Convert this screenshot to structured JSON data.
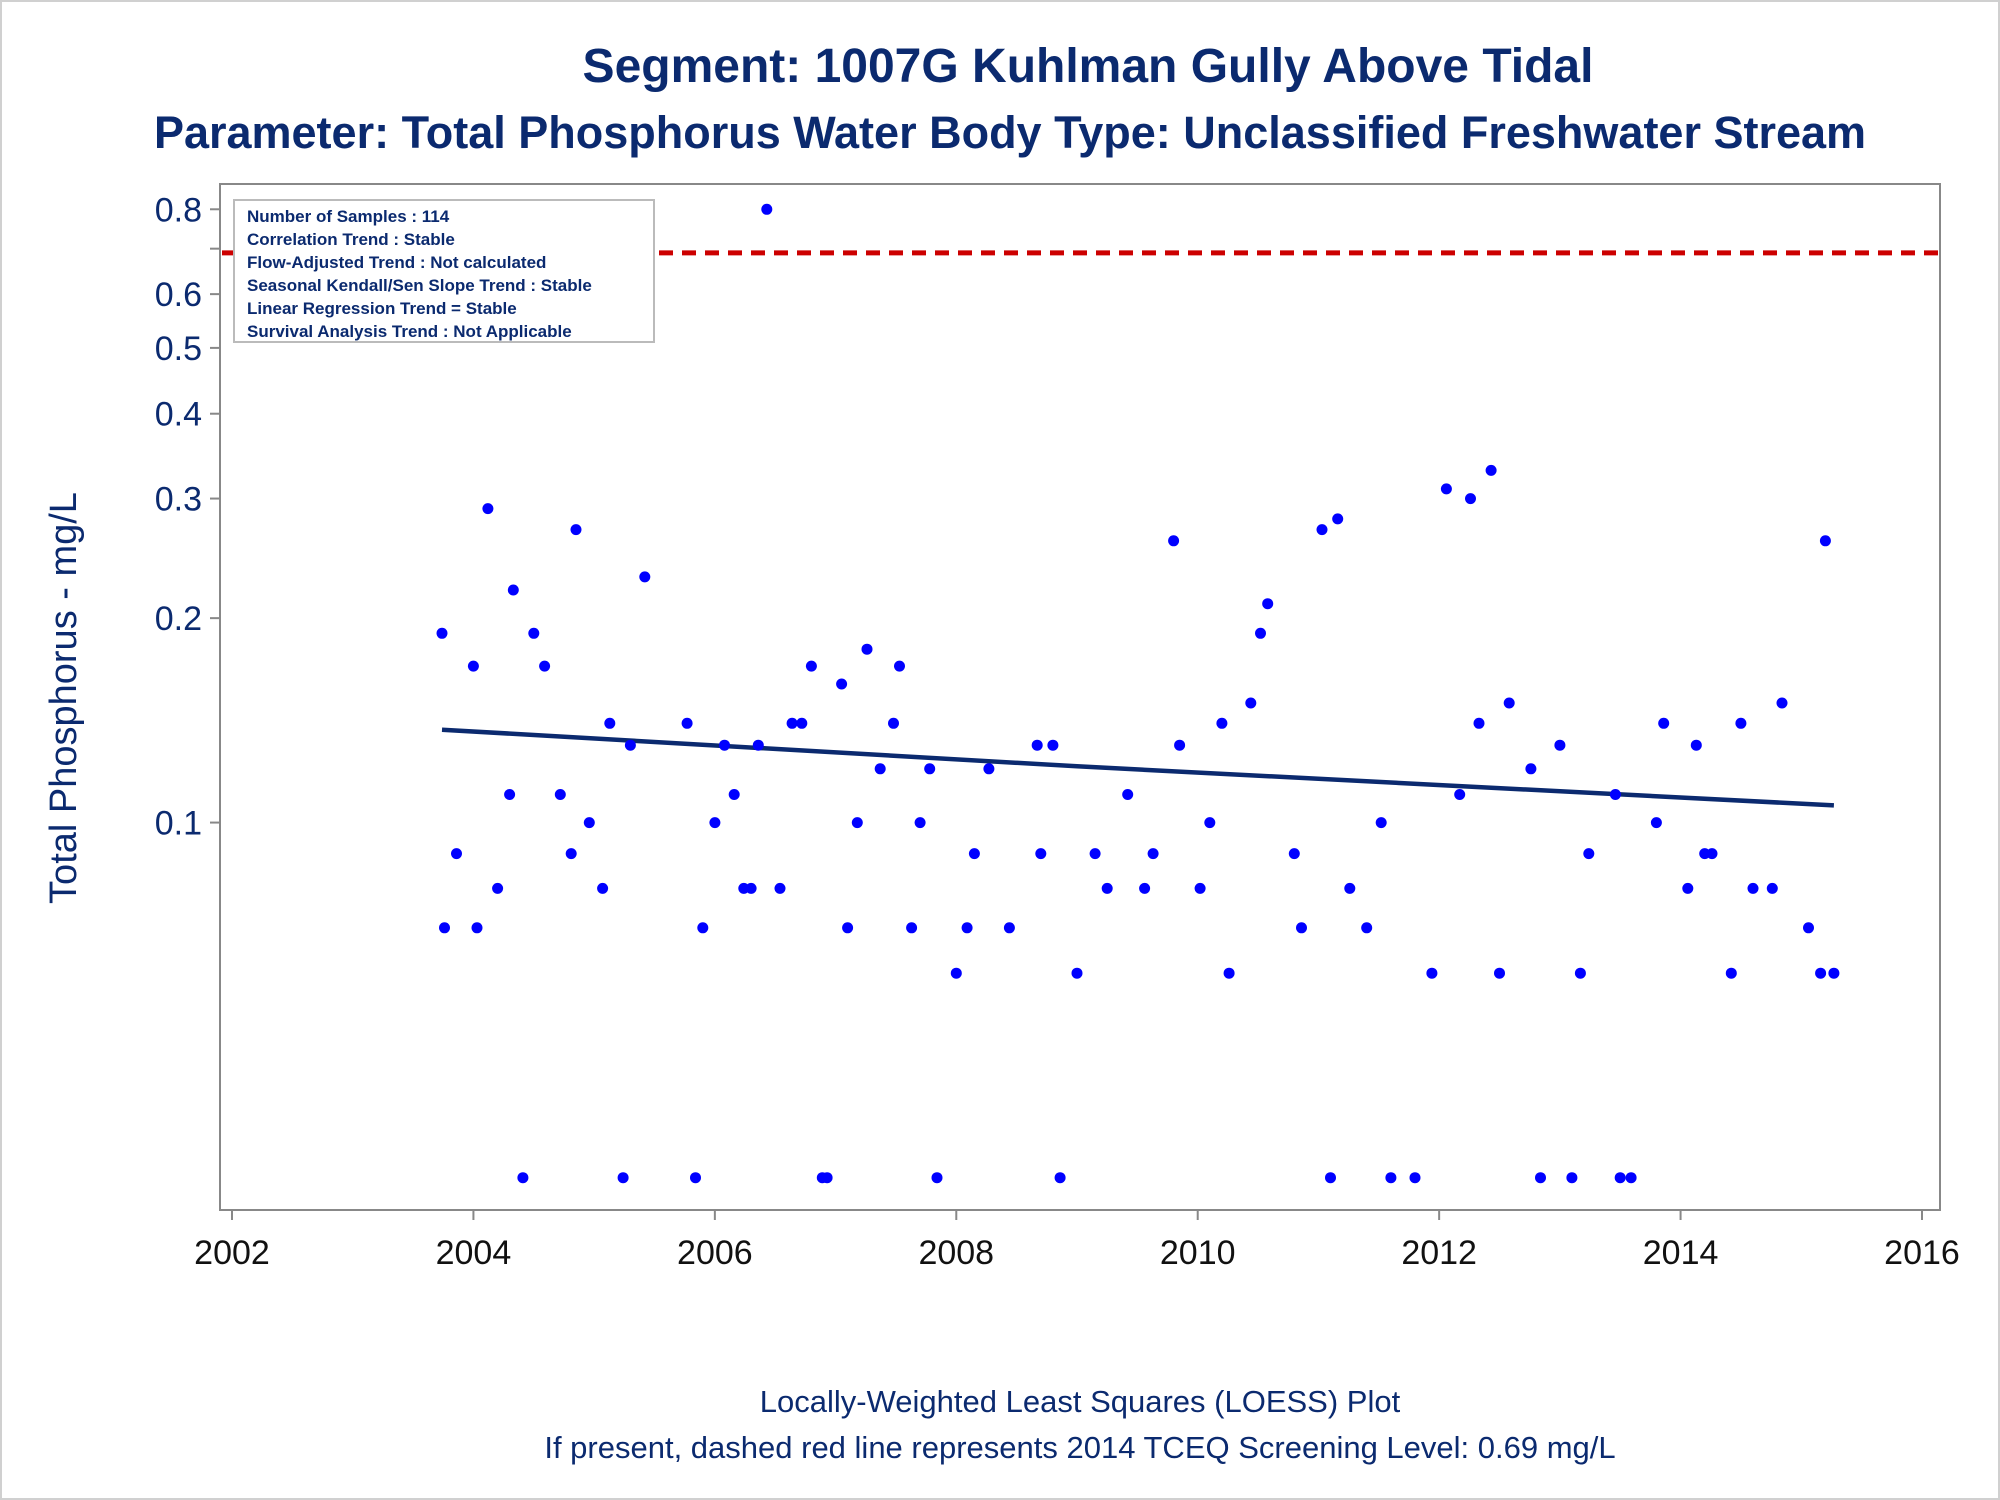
{
  "chart_data": {
    "type": "scatter",
    "title": "Segment: 1007G  Kuhlman Gully Above Tidal",
    "subtitle": "Parameter: Total Phosphorus   Water Body Type: Unclassified Freshwater Stream",
    "xlabel": "",
    "ylabel": "Total Phosphorus - mg/L",
    "y_scale": "log",
    "xlim": [
      2002,
      2016
    ],
    "ylim": [
      0.028,
      0.82
    ],
    "x_ticks": [
      "2002",
      "2004",
      "2006",
      "2008",
      "2010",
      "2012",
      "2014",
      "2016"
    ],
    "y_ticks": [
      "0.1",
      "0.2",
      "0.3",
      "0.4",
      "0.5",
      "0.6",
      "0.8"
    ],
    "grid": false,
    "info_box": [
      "Number of Samples : 114",
      "Correlation Trend : Stable",
      "Flow-Adjusted Trend : Not calculated",
      "Seasonal Kendall/Sen Slope Trend : Stable",
      "Linear Regression Trend = Stable",
      "Survival Analysis Trend : Not Applicable"
    ],
    "screening_level": 0.69,
    "footnote_1": "Locally-Weighted Least Squares (LOESS) Plot",
    "footnote_2": "If present, dashed red line represents 2014 TCEQ Screening Level: 0.69 mg/L",
    "points": [
      [
        2003.74,
        0.19
      ],
      [
        2003.76,
        0.07
      ],
      [
        2003.86,
        0.09
      ],
      [
        2004.0,
        0.17
      ],
      [
        2004.03,
        0.07
      ],
      [
        2004.12,
        0.29
      ],
      [
        2004.2,
        0.08
      ],
      [
        2004.3,
        0.11
      ],
      [
        2004.33,
        0.22
      ],
      [
        2004.41,
        0.03
      ],
      [
        2004.5,
        0.19
      ],
      [
        2004.59,
        0.17
      ],
      [
        2004.72,
        0.11
      ],
      [
        2004.81,
        0.09
      ],
      [
        2004.85,
        0.27
      ],
      [
        2004.96,
        0.1
      ],
      [
        2005.07,
        0.08
      ],
      [
        2005.13,
        0.14
      ],
      [
        2005.24,
        0.03
      ],
      [
        2005.3,
        0.13
      ],
      [
        2005.42,
        0.23
      ],
      [
        2005.77,
        0.14
      ],
      [
        2005.84,
        0.03
      ],
      [
        2005.9,
        0.07
      ],
      [
        2006.0,
        0.1
      ],
      [
        2006.08,
        0.13
      ],
      [
        2006.16,
        0.11
      ],
      [
        2006.24,
        0.08
      ],
      [
        2006.3,
        0.08
      ],
      [
        2006.36,
        0.13
      ],
      [
        2006.43,
        0.8
      ],
      [
        2006.54,
        0.08
      ],
      [
        2006.64,
        0.14
      ],
      [
        2006.72,
        0.14
      ],
      [
        2006.8,
        0.17
      ],
      [
        2006.89,
        0.03
      ],
      [
        2006.93,
        0.03
      ],
      [
        2007.05,
        0.16
      ],
      [
        2007.1,
        0.07
      ],
      [
        2007.18,
        0.1
      ],
      [
        2007.26,
        0.18
      ],
      [
        2007.37,
        0.12
      ],
      [
        2007.48,
        0.14
      ],
      [
        2007.53,
        0.17
      ],
      [
        2007.63,
        0.07
      ],
      [
        2007.7,
        0.1
      ],
      [
        2007.78,
        0.12
      ],
      [
        2007.84,
        0.03
      ],
      [
        2008.0,
        0.06
      ],
      [
        2008.09,
        0.07
      ],
      [
        2008.15,
        0.09
      ],
      [
        2008.27,
        0.12
      ],
      [
        2008.44,
        0.07
      ],
      [
        2008.67,
        0.13
      ],
      [
        2008.7,
        0.09
      ],
      [
        2008.8,
        0.13
      ],
      [
        2008.86,
        0.03
      ],
      [
        2009.0,
        0.06
      ],
      [
        2009.15,
        0.09
      ],
      [
        2009.25,
        0.08
      ],
      [
        2009.42,
        0.11
      ],
      [
        2009.56,
        0.08
      ],
      [
        2009.63,
        0.09
      ],
      [
        2009.8,
        0.26
      ],
      [
        2009.85,
        0.13
      ],
      [
        2010.02,
        0.08
      ],
      [
        2010.1,
        0.1
      ],
      [
        2010.2,
        0.14
      ],
      [
        2010.26,
        0.06
      ],
      [
        2010.44,
        0.15
      ],
      [
        2010.52,
        0.19
      ],
      [
        2010.58,
        0.21
      ],
      [
        2010.8,
        0.09
      ],
      [
        2010.86,
        0.07
      ],
      [
        2011.03,
        0.27
      ],
      [
        2011.1,
        0.03
      ],
      [
        2011.16,
        0.28
      ],
      [
        2011.26,
        0.08
      ],
      [
        2011.4,
        0.07
      ],
      [
        2011.52,
        0.1
      ],
      [
        2011.6,
        0.03
      ],
      [
        2011.8,
        0.03
      ],
      [
        2011.94,
        0.06
      ],
      [
        2012.06,
        0.31
      ],
      [
        2012.17,
        0.11
      ],
      [
        2012.26,
        0.3
      ],
      [
        2012.33,
        0.14
      ],
      [
        2012.43,
        0.33
      ],
      [
        2012.5,
        0.06
      ],
      [
        2012.58,
        0.15
      ],
      [
        2012.76,
        0.12
      ],
      [
        2012.84,
        0.03
      ],
      [
        2013.0,
        0.13
      ],
      [
        2013.1,
        0.03
      ],
      [
        2013.17,
        0.06
      ],
      [
        2013.24,
        0.09
      ],
      [
        2013.46,
        0.11
      ],
      [
        2013.5,
        0.03
      ],
      [
        2013.59,
        0.03
      ],
      [
        2013.8,
        0.1
      ],
      [
        2013.86,
        0.14
      ],
      [
        2014.06,
        0.08
      ],
      [
        2014.13,
        0.13
      ],
      [
        2014.2,
        0.09
      ],
      [
        2014.26,
        0.09
      ],
      [
        2014.42,
        0.06
      ],
      [
        2014.5,
        0.14
      ],
      [
        2014.6,
        0.08
      ],
      [
        2014.76,
        0.08
      ],
      [
        2014.84,
        0.15
      ],
      [
        2015.06,
        0.07
      ],
      [
        2015.16,
        0.06
      ],
      [
        2015.2,
        0.26
      ],
      [
        2015.27,
        0.06
      ]
    ],
    "loess_line": [
      [
        2003.74,
        0.137
      ],
      [
        2009.0,
        0.121
      ],
      [
        2015.27,
        0.106
      ]
    ],
    "colors": {
      "points": "#0000ff",
      "trend_line": "#0b2a6f",
      "screening_line": "#cc0000",
      "text": "#0b2a6f"
    }
  }
}
